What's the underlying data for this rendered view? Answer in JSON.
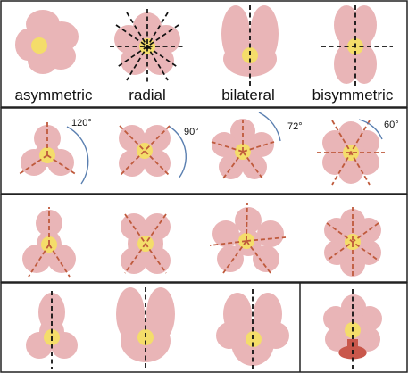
{
  "colors": {
    "petal": "#e9b5b7",
    "center": "#f4dd6a",
    "axis_red": "#bf5a3c",
    "axis_black": "#111111",
    "arc": "#5a7fb0",
    "border": "#222222",
    "lip": "#c9574b"
  },
  "row1": {
    "labels": [
      "asymmetric",
      "radial",
      "bilateral",
      "bisymmetric"
    ]
  },
  "row2": {
    "angles": [
      "120°",
      "90°",
      "72°",
      "60°"
    ]
  }
}
